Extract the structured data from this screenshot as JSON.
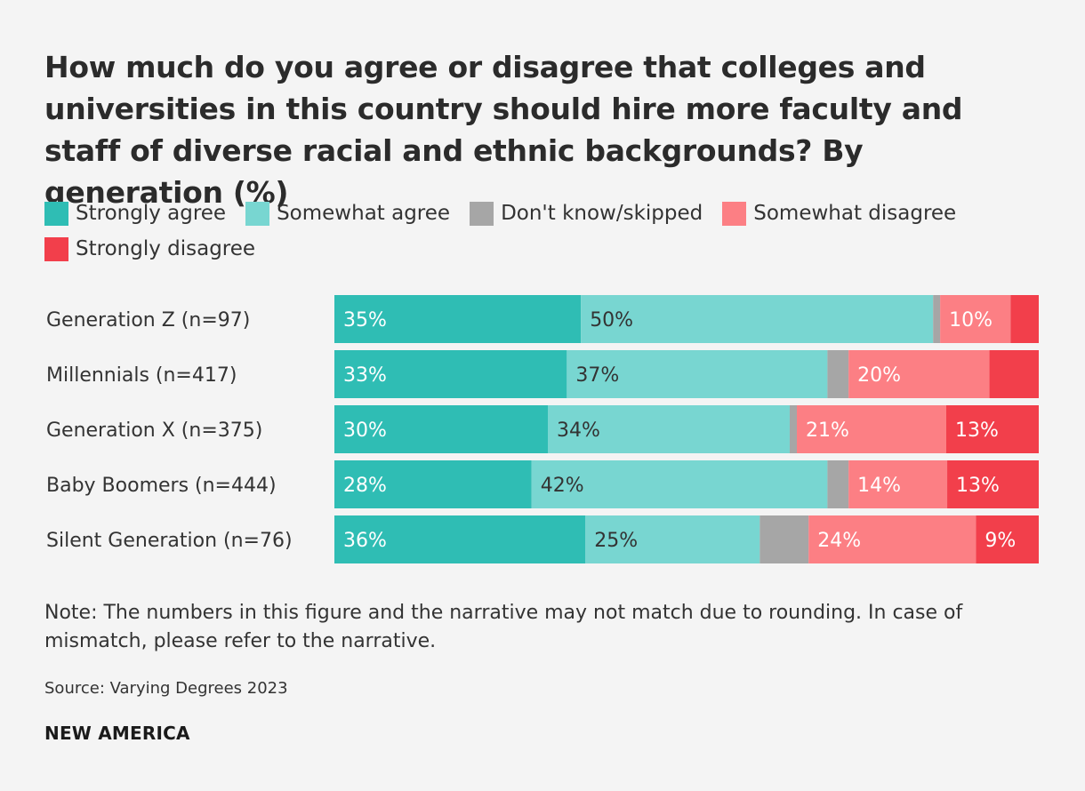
{
  "title": "How much do you agree or disagree that colleges and universities in this country should hire more faculty and staff of diverse racial and ethnic backgrounds? By generation (%)",
  "legend": [
    {
      "label": "Strongly agree",
      "color": "#2fbdb4"
    },
    {
      "label": "Somewhat agree",
      "color": "#78d6d1"
    },
    {
      "label": "Don't know/skipped",
      "color": "#a6a6a6"
    },
    {
      "label": "Somewhat disagree",
      "color": "#fc7f84"
    },
    {
      "label": "Strongly disagree",
      "color": "#f23f4b"
    }
  ],
  "chart_data": {
    "type": "bar",
    "orientation": "horizontal",
    "stacked": true,
    "title": "How much do you agree or disagree that colleges and universities in this country should hire more faculty and staff of diverse racial and ethnic backgrounds? By generation (%)",
    "categories": [
      "Generation Z (n=97)",
      "Millennials (n=417)",
      "Generation X (n=375)",
      "Baby Boomers (n=444)",
      "Silent Generation (n=76)"
    ],
    "series": [
      {
        "name": "Strongly agree",
        "color": "#2fbdb4",
        "values": [
          35,
          33,
          30,
          28,
          36
        ],
        "labels": [
          "35%",
          "33%",
          "30%",
          "28%",
          "36%"
        ]
      },
      {
        "name": "Somewhat agree",
        "color": "#78d6d1",
        "values": [
          50,
          37,
          34,
          42,
          25
        ],
        "labels": [
          "50%",
          "37%",
          "34%",
          "42%",
          "25%"
        ]
      },
      {
        "name": "Don't know/skipped",
        "color": "#a6a6a6",
        "values": [
          1,
          3,
          1,
          3,
          7
        ],
        "labels": [
          "",
          "",
          "",
          "",
          ""
        ]
      },
      {
        "name": "Somewhat disagree",
        "color": "#fc7f84",
        "values": [
          10,
          20,
          21,
          14,
          24
        ],
        "labels": [
          "10%",
          "20%",
          "21%",
          "14%",
          "24%"
        ]
      },
      {
        "name": "Strongly disagree",
        "color": "#f23f4b",
        "values": [
          4,
          7,
          13,
          13,
          9
        ],
        "labels": [
          "",
          "",
          "13%",
          "13%",
          "9%"
        ]
      }
    ],
    "xlim": [
      0,
      100
    ]
  },
  "note": "Note: The numbers in this figure and the narrative may not match due to rounding. In case of mismatch, please refer to the narrative.",
  "source": "Source: Varying Degrees 2023",
  "brand": "NEW AMERICA"
}
